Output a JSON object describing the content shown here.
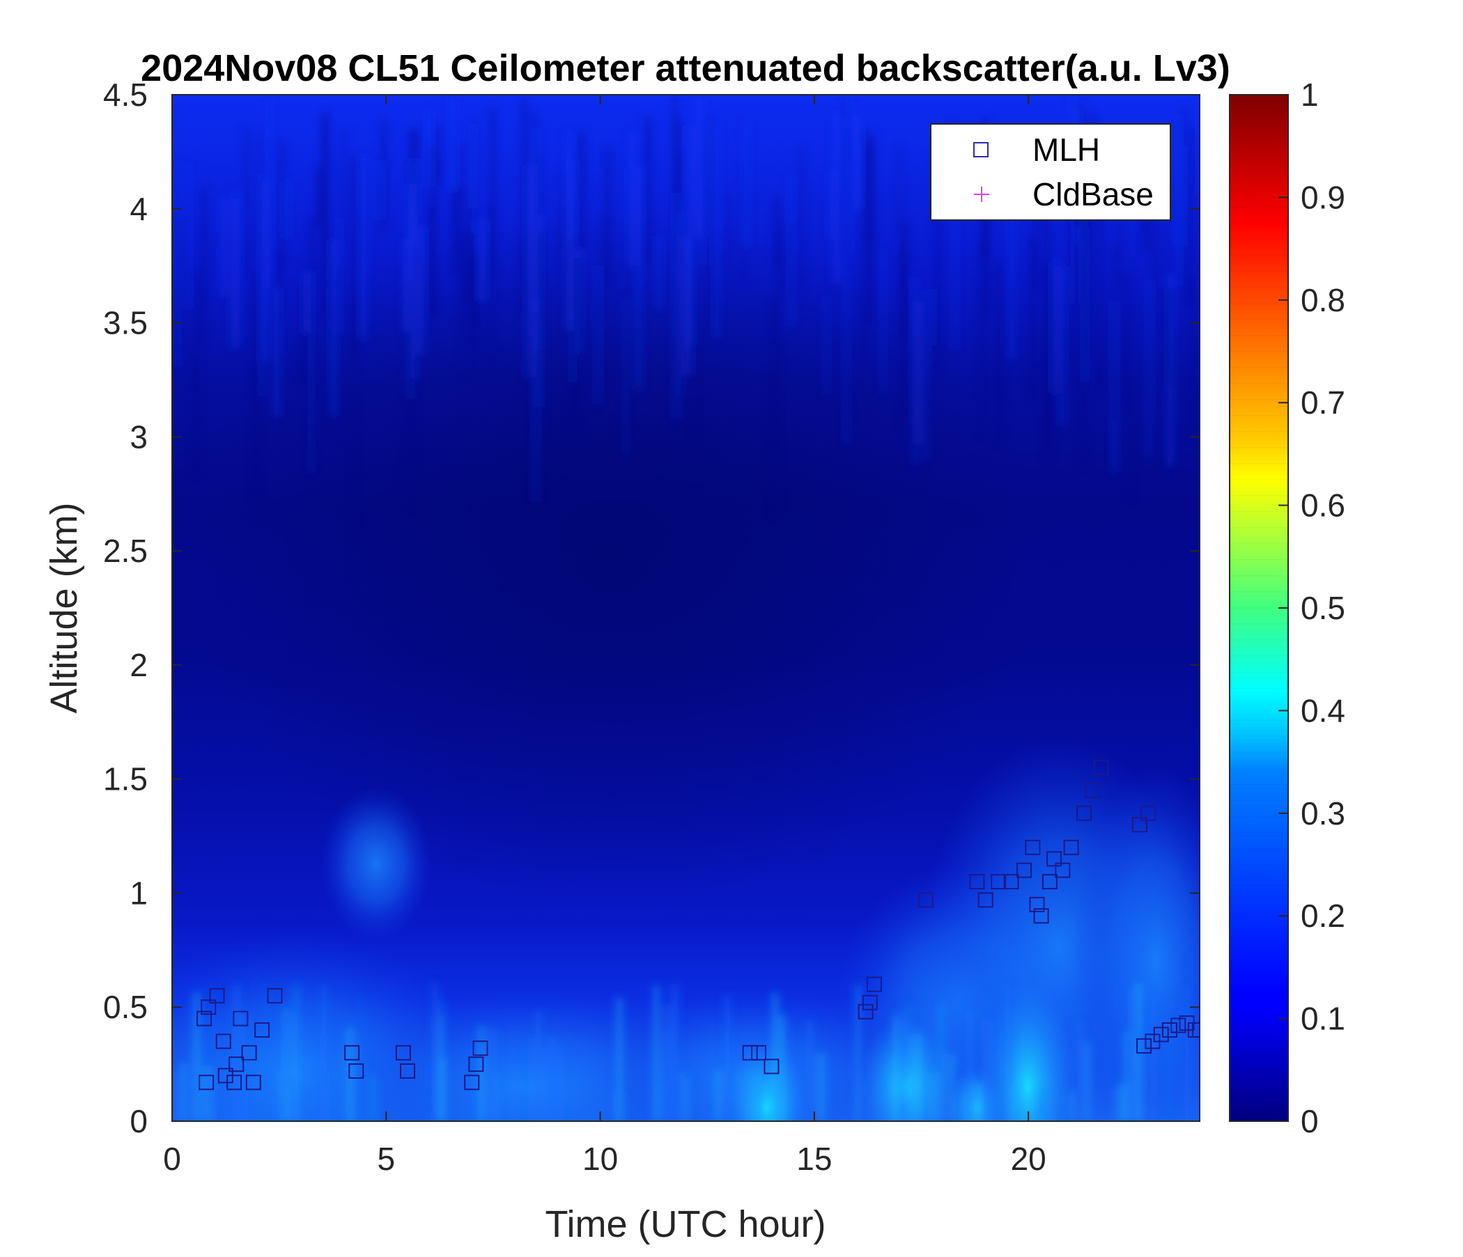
{
  "chart_data": {
    "type": "heatmap",
    "title": "2024Nov08 CL51 Ceilometer attenuated backscatter(a.u. Lv3)",
    "xlabel": "Time (UTC hour)",
    "ylabel": "Altitude (km)",
    "xlim": [
      0,
      24
    ],
    "ylim": [
      0,
      4.5
    ],
    "x_ticks": [
      0,
      5,
      10,
      15,
      20
    ],
    "y_ticks": [
      0,
      0.5,
      1,
      1.5,
      2,
      2.5,
      3,
      3.5,
      4,
      4.5
    ],
    "x_tick_labels": [
      "0",
      "5",
      "10",
      "15",
      "20"
    ],
    "y_tick_labels": [
      "0",
      "0.5",
      "1",
      "1.5",
      "2",
      "2.5",
      "3",
      "3.5",
      "4",
      "4.5"
    ],
    "colorbar": {
      "colormap": "jet",
      "range": [
        0,
        1
      ],
      "ticks": [
        0,
        0.1,
        0.2,
        0.3,
        0.4,
        0.5,
        0.6,
        0.7,
        0.8,
        0.9,
        1
      ],
      "tick_labels": [
        "0",
        "0.1",
        "0.2",
        "0.3",
        "0.4",
        "0.5",
        "0.6",
        "0.7",
        "0.8",
        "0.9",
        "1"
      ]
    },
    "legend": {
      "placement": "top-right",
      "entries": [
        {
          "label": "MLH",
          "marker": "square",
          "color": "#2b2bb5"
        },
        {
          "label": "CldBase",
          "marker": "plus",
          "color": "#e040e0"
        }
      ]
    },
    "series": [
      {
        "name": "MLH",
        "marker": "square",
        "color": "#1a1a8c",
        "points": [
          [
            0.8,
            0.17
          ],
          [
            0.75,
            0.45
          ],
          [
            0.85,
            0.5
          ],
          [
            1.05,
            0.55
          ],
          [
            1.2,
            0.35
          ],
          [
            1.25,
            0.2
          ],
          [
            1.45,
            0.17
          ],
          [
            1.5,
            0.25
          ],
          [
            1.6,
            0.45
          ],
          [
            1.8,
            0.3
          ],
          [
            1.9,
            0.17
          ],
          [
            2.1,
            0.4
          ],
          [
            2.4,
            0.55
          ],
          [
            4.2,
            0.3
          ],
          [
            4.3,
            0.22
          ],
          [
            5.4,
            0.3
          ],
          [
            5.5,
            0.22
          ],
          [
            7.0,
            0.17
          ],
          [
            7.1,
            0.25
          ],
          [
            7.2,
            0.32
          ],
          [
            13.5,
            0.3
          ],
          [
            13.7,
            0.3
          ],
          [
            14.0,
            0.24
          ],
          [
            16.2,
            0.48
          ],
          [
            16.3,
            0.52
          ],
          [
            16.4,
            0.6
          ],
          [
            17.6,
            0.97
          ],
          [
            18.8,
            1.05
          ],
          [
            19.0,
            0.97
          ],
          [
            19.3,
            1.05
          ],
          [
            19.6,
            1.05
          ],
          [
            19.9,
            1.1
          ],
          [
            20.1,
            1.2
          ],
          [
            20.2,
            0.95
          ],
          [
            20.3,
            0.9
          ],
          [
            20.5,
            1.05
          ],
          [
            20.6,
            1.15
          ],
          [
            20.8,
            1.1
          ],
          [
            21.0,
            1.2
          ],
          [
            21.3,
            1.35
          ],
          [
            21.5,
            1.45
          ],
          [
            21.7,
            1.55
          ],
          [
            22.6,
            1.3
          ],
          [
            22.8,
            1.35
          ],
          [
            22.7,
            0.33
          ],
          [
            22.9,
            0.35
          ],
          [
            23.1,
            0.38
          ],
          [
            23.3,
            0.4
          ],
          [
            23.5,
            0.42
          ],
          [
            23.7,
            0.43
          ],
          [
            23.9,
            0.4
          ],
          [
            24.0,
            0.4
          ]
        ]
      },
      {
        "name": "CldBase",
        "marker": "plus",
        "color": "#e040e0",
        "points": []
      }
    ]
  }
}
